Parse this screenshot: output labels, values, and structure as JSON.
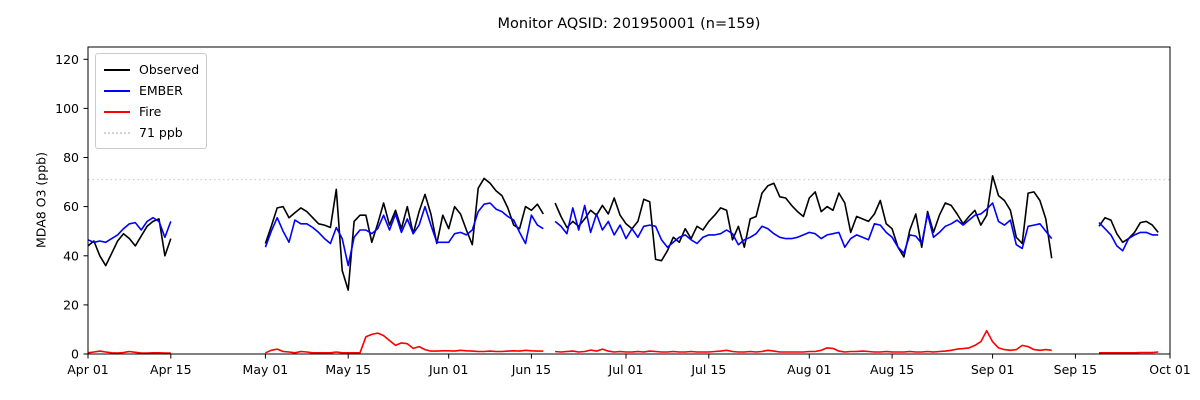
{
  "title": "Monitor AQSID: 201950001 (n=159)",
  "legend": {
    "items": [
      {
        "label": "Observed",
        "color": "#000000",
        "style": "solid"
      },
      {
        "label": "EMBER",
        "color": "#0000ff",
        "style": "solid"
      },
      {
        "label": "Fire",
        "color": "#ff0000",
        "style": "solid"
      },
      {
        "label": "71 ppb",
        "color": "#d3d3d3",
        "style": "dotted"
      }
    ]
  },
  "chart_data": {
    "type": "line",
    "title": "Monitor AQSID: 201950001 (n=159)",
    "xlabel": "",
    "ylabel": "MDA8 O3 (ppb)",
    "n_points": 159,
    "ylim": [
      0,
      125
    ],
    "x_span_days": 183,
    "grid": false,
    "legend_position": "upper left",
    "threshold": {
      "value": 71,
      "label": "71 ppb",
      "color": "#d3d3d3",
      "linestyle": "dotted"
    },
    "colors": {
      "observed": "#000000",
      "ember": "#0000ff",
      "fire": "#ff0000"
    },
    "y_ticks": [
      0,
      20,
      40,
      60,
      80,
      100,
      120
    ],
    "x_ticks": [
      {
        "day": 0,
        "label": "Apr 01"
      },
      {
        "day": 14,
        "label": "Apr 15"
      },
      {
        "day": 30,
        "label": "May 01"
      },
      {
        "day": 44,
        "label": "May 15"
      },
      {
        "day": 61,
        "label": "Jun 01"
      },
      {
        "day": 75,
        "label": "Jun 15"
      },
      {
        "day": 91,
        "label": "Jul 01"
      },
      {
        "day": 105,
        "label": "Jul 15"
      },
      {
        "day": 122,
        "label": "Aug 01"
      },
      {
        "day": 136,
        "label": "Aug 15"
      },
      {
        "day": 153,
        "label": "Sep 01"
      },
      {
        "day": 167,
        "label": "Sep 15"
      },
      {
        "day": 183,
        "label": "Oct 01"
      }
    ],
    "segments": [
      {
        "start_day": 0,
        "date_range": "Apr 01 - Apr 15",
        "observed": [
          44,
          46,
          40,
          36,
          41,
          46,
          49,
          47,
          44,
          48,
          52,
          54,
          55,
          40,
          47
        ],
        "ember": [
          46.5,
          45.5,
          46,
          45.5,
          47,
          48.5,
          51,
          53,
          53.5,
          50.5,
          54,
          55.5,
          54,
          47.5,
          54
        ],
        "fire": [
          0.5,
          0.8,
          1.2,
          0.8,
          0.5,
          0.4,
          0.6,
          1,
          0.7,
          0.4,
          0.4,
          0.5,
          0.5,
          0.4,
          0.4
        ]
      },
      {
        "start_day": 30,
        "date_range": "May 01 - Jun 17",
        "observed": [
          45,
          52,
          59.5,
          60,
          55.5,
          57.5,
          59.5,
          58,
          55.5,
          53,
          52.5,
          51.5,
          67,
          34,
          26,
          54,
          56.5,
          56.5,
          45.5,
          53,
          61.5,
          52.5,
          58.5,
          51,
          60,
          49,
          58,
          65,
          57,
          45,
          56.5,
          51,
          60,
          57,
          50.5,
          44.5,
          67.5,
          71.5,
          69.5,
          66.5,
          64.5,
          59.5,
          52.5,
          51,
          60,
          58.5,
          61,
          57
        ],
        "ember": [
          43.5,
          50,
          55.5,
          50,
          45.5,
          54.5,
          53,
          53,
          51.5,
          49.5,
          47,
          45,
          51.5,
          47,
          36,
          47.5,
          50.5,
          50.5,
          49,
          51,
          56.5,
          50.5,
          57,
          49.5,
          55,
          49,
          52.5,
          60,
          52.5,
          45.5,
          45.5,
          45.5,
          49,
          49.5,
          48.5,
          50.5,
          58,
          61,
          61.5,
          59,
          58,
          56,
          54.5,
          49.5,
          45,
          56.5,
          52.5,
          51
        ],
        "fire": [
          0.5,
          1.5,
          2,
          1,
          0.8,
          0.5,
          1,
          0.8,
          0.5,
          0.5,
          0.5,
          0.5,
          0.8,
          0.5,
          0.5,
          0.5,
          0.5,
          7,
          8,
          8.5,
          7.5,
          5.5,
          3.5,
          4.5,
          4.2,
          2.3,
          3,
          1.8,
          1.2,
          1.2,
          1.3,
          1.3,
          1.2,
          1.5,
          1.3,
          1.2,
          1,
          1,
          1.2,
          1,
          1,
          1.2,
          1.3,
          1.2,
          1.5,
          1.3,
          1.2,
          1.2
        ]
      },
      {
        "start_day": 79,
        "date_range": "Jun 19 - Sep 11",
        "observed": [
          61.5,
          56,
          51.5,
          54,
          52,
          55,
          58.5,
          56.5,
          60.5,
          57,
          63.5,
          56.5,
          53,
          51,
          54,
          63,
          62,
          38.5,
          38,
          42,
          47.5,
          45.5,
          51,
          47,
          52,
          50.5,
          54,
          56.5,
          59.5,
          58.5,
          46.5,
          52,
          43.5,
          55,
          56,
          65.5,
          68.5,
          69.5,
          64,
          63.5,
          60.5,
          58,
          56,
          63.5,
          66,
          58,
          60,
          58.5,
          65.5,
          61.5,
          49.5,
          56,
          55,
          54,
          57,
          62.5,
          53,
          51,
          43.5,
          39.5,
          50.5,
          57,
          43.5,
          58,
          49.5,
          56.5,
          61.5,
          60.5,
          57,
          53,
          56,
          58.5,
          52.5,
          56.5,
          72.5,
          64.5,
          62.5,
          58.5,
          47.5,
          45,
          65.5,
          66,
          62.5,
          55,
          39
        ],
        "ember": [
          54,
          52,
          49,
          59.5,
          50.5,
          60.5,
          49.5,
          57,
          50.5,
          54,
          48.5,
          52.5,
          47,
          51,
          47.5,
          52,
          52.5,
          52,
          46.5,
          43.5,
          45.5,
          47.5,
          48.5,
          46.5,
          45,
          47.5,
          48.5,
          48.5,
          49,
          50.5,
          49,
          44.5,
          46.5,
          47.5,
          49,
          52,
          51,
          49,
          47.5,
          47,
          47,
          47.5,
          48.5,
          49.5,
          49,
          47,
          48.5,
          49,
          49.5,
          43.5,
          47,
          48.5,
          47.5,
          46.5,
          53,
          52.5,
          49.5,
          47.5,
          43.5,
          41,
          48.5,
          48,
          45,
          57,
          47.5,
          49.5,
          52,
          53,
          54.5,
          52.5,
          54.5,
          56.5,
          57,
          59,
          61.5,
          54,
          52.5,
          54.5,
          44.5,
          43,
          52,
          52.5,
          53,
          50,
          47
        ],
        "fire": [
          1,
          0.8,
          1,
          1.2,
          0.8,
          1,
          1.6,
          1.2,
          2,
          1.2,
          0.8,
          1,
          0.8,
          0.8,
          1,
          0.8,
          1.2,
          1,
          0.8,
          0.8,
          1,
          0.8,
          0.8,
          1,
          0.8,
          0.8,
          0.8,
          1,
          1.2,
          1.5,
          1,
          0.8,
          0.8,
          1,
          0.8,
          1,
          1.5,
          1.2,
          0.8,
          0.8,
          0.8,
          0.8,
          0.8,
          1,
          1,
          1.5,
          2.5,
          2.3,
          1.2,
          0.8,
          1,
          1,
          1.2,
          1,
          0.8,
          0.8,
          1,
          0.8,
          0.8,
          0.8,
          1,
          0.8,
          0.8,
          1,
          0.8,
          1,
          1.2,
          1.5,
          2,
          2.2,
          2.5,
          3.5,
          5,
          9.5,
          5,
          2.5,
          1.8,
          1.5,
          1.8,
          3.5,
          3,
          1.8,
          1.5,
          1.8,
          1.5
        ]
      },
      {
        "start_day": 171,
        "date_range": "Sep 19 - Sep 29",
        "observed": [
          52,
          55.5,
          54.5,
          49,
          45.5,
          47,
          49.5,
          53.5,
          54,
          52.5,
          49.5
        ],
        "ember": [
          53.5,
          51,
          48.5,
          44,
          42,
          47,
          48.5,
          49.5,
          49.5,
          48.5,
          48.5
        ],
        "fire": [
          0.5,
          0.5,
          0.5,
          0.5,
          0.5,
          0.5,
          0.5,
          0.6,
          0.6,
          0.6,
          0.8
        ]
      }
    ]
  }
}
